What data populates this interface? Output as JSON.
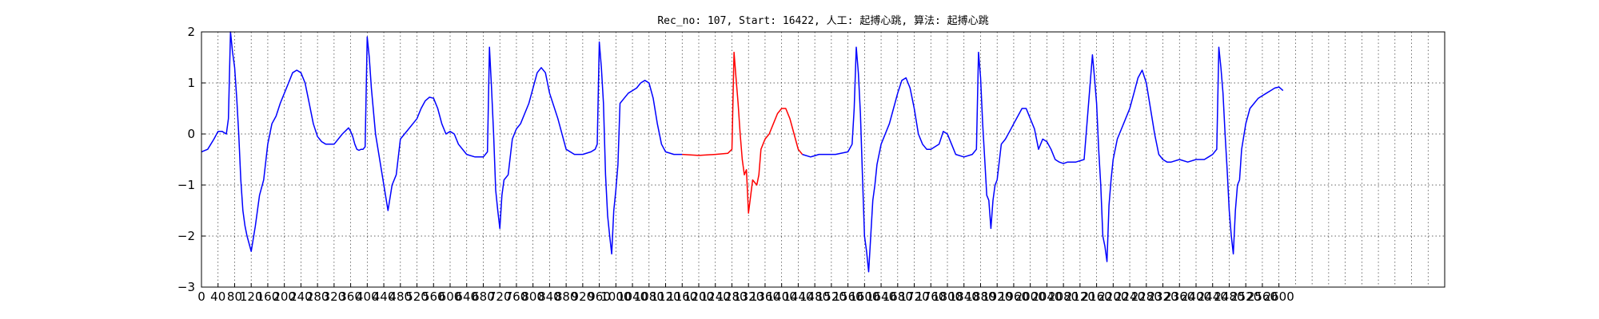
{
  "chart_data": {
    "type": "line",
    "title": "Rec_no: 107, Start: 16422, 人工: 起搏心跳, 算法: 起搏心跳",
    "xlabel": "",
    "ylabel": "",
    "xlim": [
      0,
      3000
    ],
    "ylim": [
      -3,
      2
    ],
    "x_tick_step": 40,
    "x_ticks": [
      0,
      40,
      80,
      120,
      160,
      200,
      240,
      280,
      320,
      360,
      400,
      440,
      480,
      520,
      560,
      600,
      640,
      680,
      720,
      760,
      800,
      840,
      880,
      920,
      960,
      1000,
      1040,
      1080,
      1120,
      1160,
      1200,
      1240,
      1280,
      1320,
      1360,
      1400,
      1440,
      1480,
      1520,
      1560,
      1600,
      1640,
      1680,
      1720,
      1760,
      1800,
      1840,
      1880,
      1920,
      1960,
      2000,
      2040,
      2080,
      2120,
      2160,
      2200,
      2240,
      2280,
      2320,
      2360,
      2400,
      2440,
      2480,
      2520,
      2560,
      2600
    ],
    "y_ticks": [
      -3,
      -2,
      -1,
      0,
      1,
      2
    ],
    "grid": true,
    "colors": {
      "signal": "#0000ff",
      "highlight": "#ff0000"
    },
    "series": [
      {
        "color": "#0000ff",
        "x": [
          0,
          15,
          30,
          40,
          50,
          60,
          65,
          70,
          75,
          80,
          85,
          90,
          95,
          100,
          105,
          110,
          120,
          130,
          140,
          150,
          160,
          170,
          180,
          190,
          200,
          210,
          220,
          230,
          240,
          250,
          260,
          270,
          280,
          290,
          300,
          310,
          320,
          340,
          355,
          360,
          365,
          370,
          375,
          380,
          385,
          390,
          395,
          400,
          405,
          410,
          420,
          440,
          450,
          460,
          470,
          480,
          490,
          500,
          510,
          520,
          530,
          540,
          550,
          560,
          570,
          580,
          590,
          600,
          610,
          620,
          640,
          660,
          670,
          675,
          680,
          685,
          690,
          695,
          700,
          705,
          710,
          715,
          720,
          725,
          730,
          740,
          750,
          760,
          770,
          780,
          790,
          800,
          810,
          820,
          830,
          840,
          860,
          880,
          900,
          920,
          940,
          950,
          955,
          960,
          965,
          970,
          975,
          980,
          985,
          990,
          995,
          1000,
          1005,
          1010,
          1020,
          1030,
          1040,
          1050,
          1060,
          1070,
          1080,
          1090,
          1100,
          1110,
          1120,
          1140,
          1160
        ],
        "y": [
          -0.35,
          -0.3,
          -0.1,
          0.05,
          0.05,
          0.0,
          0.3,
          2.0,
          1.6,
          1.3,
          0.7,
          0.0,
          -0.9,
          -1.5,
          -1.8,
          -2.0,
          -2.3,
          -1.8,
          -1.2,
          -0.9,
          -0.2,
          0.2,
          0.35,
          0.6,
          0.8,
          1.0,
          1.2,
          1.25,
          1.2,
          1.0,
          0.6,
          0.2,
          -0.05,
          -0.15,
          -0.2,
          -0.2,
          -0.2,
          0.0,
          0.12,
          0.05,
          -0.05,
          -0.2,
          -0.3,
          -0.32,
          -0.3,
          -0.3,
          -0.25,
          1.9,
          1.5,
          0.9,
          0.0,
          -1.0,
          -1.5,
          -1.0,
          -0.8,
          -0.1,
          0.0,
          0.1,
          0.2,
          0.3,
          0.5,
          0.65,
          0.72,
          0.7,
          0.5,
          0.2,
          0.0,
          0.05,
          0.0,
          -0.2,
          -0.4,
          -0.45,
          -0.45,
          -0.45,
          -0.45,
          -0.4,
          -0.35,
          1.7,
          0.9,
          0.0,
          -1.1,
          -1.5,
          -1.85,
          -1.2,
          -0.9,
          -0.8,
          -0.1,
          0.1,
          0.2,
          0.4,
          0.6,
          0.9,
          1.2,
          1.3,
          1.2,
          0.8,
          0.3,
          -0.3,
          -0.4,
          -0.4,
          -0.35,
          -0.3,
          -0.2,
          1.8,
          1.3,
          0.6,
          -0.8,
          -1.6,
          -2.0,
          -2.35,
          -1.5,
          -1.1,
          -0.6,
          0.6,
          0.7,
          0.8,
          0.85,
          0.9,
          1.0,
          1.05,
          1.0,
          0.7,
          0.2,
          -0.2,
          -0.35,
          -0.4,
          -0.4
        ]
      },
      {
        "color": "#ff0000",
        "x": [
          1160,
          1200,
          1240,
          1270,
          1280,
          1285,
          1290,
          1295,
          1300,
          1305,
          1310,
          1315,
          1320,
          1330,
          1340,
          1345,
          1350,
          1360,
          1370,
          1380,
          1390,
          1400,
          1410,
          1420,
          1430,
          1440,
          1450
        ],
        "y": [
          -0.4,
          -0.42,
          -0.4,
          -0.38,
          -0.3,
          1.6,
          1.1,
          0.6,
          0.0,
          -0.5,
          -0.8,
          -0.7,
          -1.55,
          -0.9,
          -1.0,
          -0.8,
          -0.3,
          -0.1,
          0.0,
          0.2,
          0.4,
          0.5,
          0.5,
          0.3,
          0.0,
          -0.3,
          -0.4
        ]
      },
      {
        "color": "#0000ff",
        "x": [
          1450,
          1470,
          1490,
          1510,
          1530,
          1560,
          1570,
          1575,
          1580,
          1585,
          1590,
          1595,
          1600,
          1605,
          1610,
          1615,
          1620,
          1625,
          1630,
          1640,
          1660,
          1670,
          1680,
          1690,
          1700,
          1710,
          1720,
          1730,
          1740,
          1750,
          1760,
          1780,
          1790,
          1800,
          1810,
          1820,
          1840,
          1860,
          1870,
          1875,
          1880,
          1885,
          1890,
          1895,
          1900,
          1905,
          1910,
          1915,
          1920,
          1930,
          1940,
          1950,
          1960,
          1970,
          1980,
          1990,
          2000,
          2010,
          2020,
          2030,
          2040,
          2050,
          2060,
          2070,
          2080,
          2090,
          2110,
          2130,
          2150,
          2155,
          2160,
          2165,
          2170,
          2175,
          2180,
          2185,
          2190,
          2195,
          2200,
          2210,
          2220,
          2230,
          2240,
          2250,
          2260,
          2270,
          2280,
          2290,
          2300,
          2310,
          2320,
          2330,
          2340,
          2360,
          2380,
          2400,
          2420,
          2430,
          2440,
          2450,
          2455,
          2460,
          2465,
          2470,
          2475,
          2480,
          2485,
          2490,
          2495,
          2500,
          2505,
          2510,
          2520,
          2530,
          2540,
          2550,
          2560,
          2570,
          2580,
          2590,
          2600,
          2610
        ],
        "y": [
          -0.4,
          -0.45,
          -0.4,
          -0.4,
          -0.4,
          -0.35,
          -0.2,
          0.5,
          1.7,
          1.2,
          0.4,
          -0.8,
          -2.0,
          -2.3,
          -2.7,
          -2.0,
          -1.3,
          -1.0,
          -0.6,
          -0.2,
          0.2,
          0.5,
          0.8,
          1.05,
          1.1,
          0.9,
          0.5,
          0.0,
          -0.2,
          -0.3,
          -0.3,
          -0.2,
          0.05,
          0.0,
          -0.2,
          -0.4,
          -0.45,
          -0.4,
          -0.3,
          1.6,
          1.1,
          0.2,
          -0.5,
          -1.2,
          -1.3,
          -1.85,
          -1.3,
          -1.0,
          -0.9,
          -0.2,
          -0.1,
          0.05,
          0.2,
          0.35,
          0.5,
          0.5,
          0.3,
          0.1,
          -0.3,
          -0.1,
          -0.15,
          -0.3,
          -0.5,
          -0.55,
          -0.58,
          -0.55,
          -0.55,
          -0.5,
          1.55,
          1.1,
          0.6,
          -0.3,
          -1.0,
          -2.0,
          -2.2,
          -2.5,
          -1.4,
          -0.9,
          -0.5,
          -0.1,
          0.1,
          0.3,
          0.5,
          0.8,
          1.1,
          1.25,
          1.0,
          0.5,
          0.0,
          -0.4,
          -0.5,
          -0.55,
          -0.55,
          -0.5,
          -0.55,
          -0.5,
          -0.5,
          -0.45,
          -0.4,
          -0.3,
          1.7,
          1.3,
          0.8,
          0.0,
          -0.7,
          -1.5,
          -2.0,
          -2.35,
          -1.5,
          -1.0,
          -0.9,
          -0.3,
          0.2,
          0.5,
          0.6,
          0.7,
          0.75,
          0.8,
          0.85,
          0.9,
          0.92,
          0.85
        ]
      }
    ]
  }
}
